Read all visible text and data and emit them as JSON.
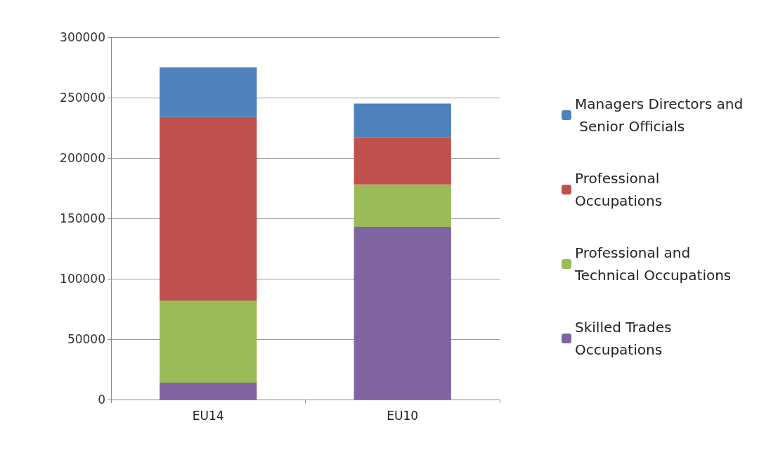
{
  "chart_data": {
    "type": "bar",
    "stacked": true,
    "categories": [
      "EU14",
      "EU10"
    ],
    "series": [
      {
        "name": "Skilled Trades Occupations",
        "color": "#8064a2",
        "values": [
          14000,
          143000
        ]
      },
      {
        "name": "Professional and Technical Occupations",
        "color": "#9bbb59",
        "values": [
          68000,
          35000
        ]
      },
      {
        "name": "Professional Occupations",
        "color": "#c0504d",
        "values": [
          152000,
          39000
        ]
      },
      {
        "name": "Managers Directors and Senior Officials",
        "color": "#4f81bd",
        "values": [
          41000,
          28000
        ]
      }
    ],
    "ylim": [
      0,
      300000
    ],
    "yticks": [
      0,
      50000,
      100000,
      150000,
      200000,
      250000,
      300000
    ],
    "grid": "y",
    "legend": "right"
  }
}
